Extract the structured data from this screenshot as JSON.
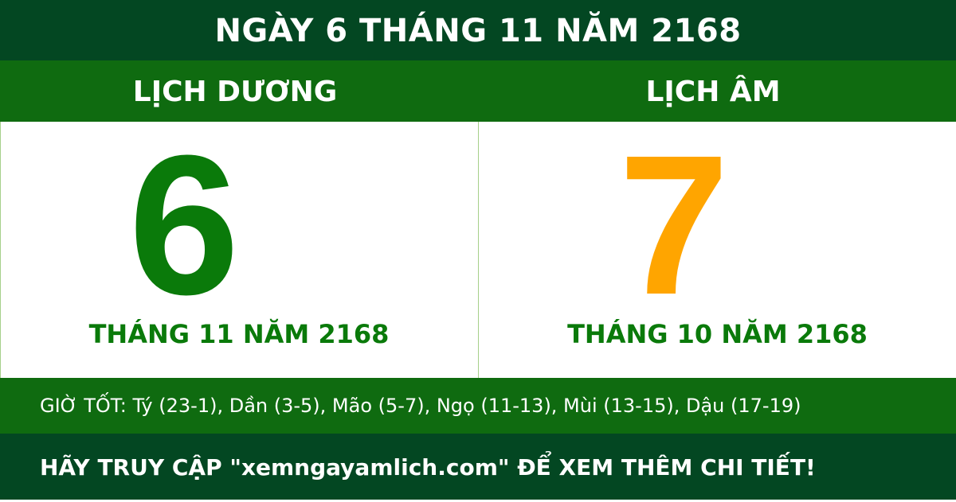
{
  "title": "NGÀY 6 THÁNG 11 NĂM 2168",
  "solar": {
    "heading": "LỊCH DƯƠNG",
    "day": "6",
    "month_year": "THÁNG 11 NĂM 2168"
  },
  "lunar": {
    "heading": "LỊCH ÂM",
    "day": "7",
    "month_year": "THÁNG 10 NĂM 2168"
  },
  "good_hours": "GIỜ TỐT: Tý (23-1), Dần (3-5), Mão (5-7), Ngọ (11-13), Mùi (13-15), Dậu (17-19)",
  "footer": "HÃY TRUY CẬP \"xemngayamlich.com\" ĐỂ XEM THÊM CHI TIẾT!",
  "colors": {
    "dark_green": "#034722",
    "green": "#0f6b10",
    "solar_day": "#0a7a0a",
    "lunar_day": "#ffa500"
  }
}
